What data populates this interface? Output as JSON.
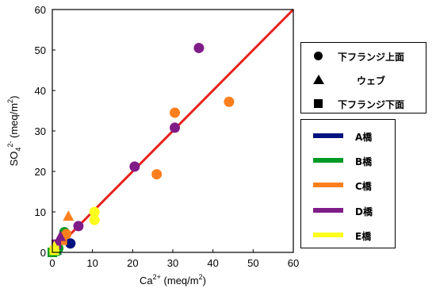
{
  "chart_data": {
    "type": "scatter",
    "xlabel": "Ca",
    "xlabel_sup": "2+",
    "xlabel_unit": " (meq/m",
    "xlabel_unit_sup": "2",
    "xlabel_close": ")",
    "ylabel": "SO",
    "ylabel_sub": "4",
    "ylabel_sup": "2-",
    "ylabel_unit": " (meq/m",
    "ylabel_unit_sup": "2",
    "ylabel_close": ")",
    "xlim": [
      0,
      60
    ],
    "ylim": [
      0,
      60
    ],
    "xticks": [
      0,
      10,
      20,
      30,
      40,
      50,
      60
    ],
    "yticks": [
      0,
      10,
      20,
      30,
      40,
      50,
      60
    ],
    "reference_line": {
      "x": [
        0,
        60
      ],
      "y": [
        0,
        60
      ],
      "color": "#e8201c"
    },
    "legend_shapes": [
      {
        "shape": "circle",
        "label": "下フランジ上面"
      },
      {
        "shape": "triangle",
        "label": "ウェブ"
      },
      {
        "shape": "square",
        "label": "下フランジ下面"
      }
    ],
    "series": [
      {
        "name": "A橋",
        "color": "#00137f",
        "points": [
          {
            "x": 4.5,
            "y": 2.2,
            "shape": "circle"
          },
          {
            "x": 1.0,
            "y": 0.6,
            "shape": "triangle"
          },
          {
            "x": 0.5,
            "y": 0.4,
            "shape": "square"
          }
        ]
      },
      {
        "name": "B橋",
        "color": "#009a26",
        "points": [
          {
            "x": 3.0,
            "y": 5.0,
            "shape": "circle"
          },
          {
            "x": 1.5,
            "y": 1.0,
            "shape": "circle"
          },
          {
            "x": 0.5,
            "y": 0.3,
            "shape": "triangle"
          },
          {
            "x": 0.0,
            "y": 0.0,
            "shape": "square"
          },
          {
            "x": 1.0,
            "y": 0.5,
            "shape": "square"
          }
        ]
      },
      {
        "name": "C橋",
        "color": "#ff7f1d",
        "points": [
          {
            "x": 44.0,
            "y": 37.2,
            "shape": "circle"
          },
          {
            "x": 30.5,
            "y": 34.5,
            "shape": "circle"
          },
          {
            "x": 26.0,
            "y": 19.3,
            "shape": "circle"
          },
          {
            "x": 3.5,
            "y": 4.5,
            "shape": "circle"
          },
          {
            "x": 4.0,
            "y": 9.0,
            "shape": "triangle"
          },
          {
            "x": 2.5,
            "y": 3.0,
            "shape": "square"
          }
        ]
      },
      {
        "name": "D橋",
        "color": "#7f1c87",
        "points": [
          {
            "x": 36.5,
            "y": 50.5,
            "shape": "circle"
          },
          {
            "x": 30.5,
            "y": 30.8,
            "shape": "circle"
          },
          {
            "x": 20.5,
            "y": 21.2,
            "shape": "circle"
          },
          {
            "x": 6.5,
            "y": 6.5,
            "shape": "circle"
          },
          {
            "x": 2.0,
            "y": 4.0,
            "shape": "triangle"
          },
          {
            "x": 1.0,
            "y": 2.0,
            "shape": "square"
          }
        ]
      },
      {
        "name": "E橋",
        "color": "#ffff1e",
        "points": [
          {
            "x": 10.5,
            "y": 10.0,
            "shape": "circle"
          },
          {
            "x": 10.5,
            "y": 8.0,
            "shape": "circle"
          },
          {
            "x": 0.5,
            "y": 1.5,
            "shape": "triangle"
          },
          {
            "x": 0.5,
            "y": 0.5,
            "shape": "square"
          }
        ]
      }
    ]
  }
}
